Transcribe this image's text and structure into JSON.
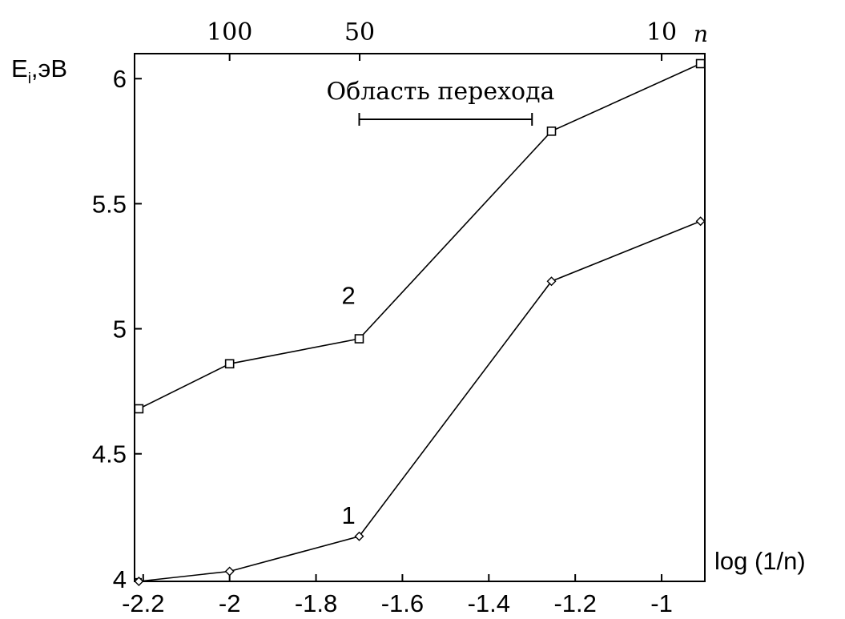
{
  "chart_data": {
    "type": "line",
    "ylabel": "E",
    "ylabel_sub": "i",
    "ylabel_unit": ",эВ",
    "xlabel": "log (1/n)",
    "top_axis_label": "n",
    "annotation": "Область перехода",
    "transition_range": [
      -1.7,
      -1.3
    ],
    "xlim": [
      -2.22,
      -0.9
    ],
    "ylim": [
      3.99,
      6.1
    ],
    "x_ticks": [
      -2.2,
      -2,
      -1.8,
      -1.6,
      -1.4,
      -1.2,
      -1
    ],
    "x_tick_labels": [
      "-2.2",
      "-2",
      "-1.8",
      "-1.6",
      "-1.4",
      "-1.2",
      "-1"
    ],
    "y_ticks": [
      4,
      4.5,
      5,
      5.5,
      6
    ],
    "y_tick_labels": [
      "4",
      "4.5",
      "5",
      "5.5",
      "6"
    ],
    "top_ticks": [
      100,
      50,
      10
    ],
    "top_tick_labels": [
      "100",
      "50",
      "10"
    ],
    "grid": false,
    "series": [
      {
        "name": "1",
        "marker": "diamond",
        "label_at": [
          -1.71,
          4.22
        ],
        "x": [
          -2.21,
          -2.0,
          -1.7,
          -1.255,
          -0.91
        ],
        "y": [
          3.99,
          4.03,
          4.17,
          5.19,
          5.43
        ]
      },
      {
        "name": "2",
        "marker": "square",
        "label_at": [
          -1.71,
          5.1
        ],
        "x": [
          -2.21,
          -2.0,
          -1.7,
          -1.255,
          -0.91
        ],
        "y": [
          4.68,
          4.86,
          4.96,
          5.79,
          6.06
        ]
      }
    ]
  }
}
